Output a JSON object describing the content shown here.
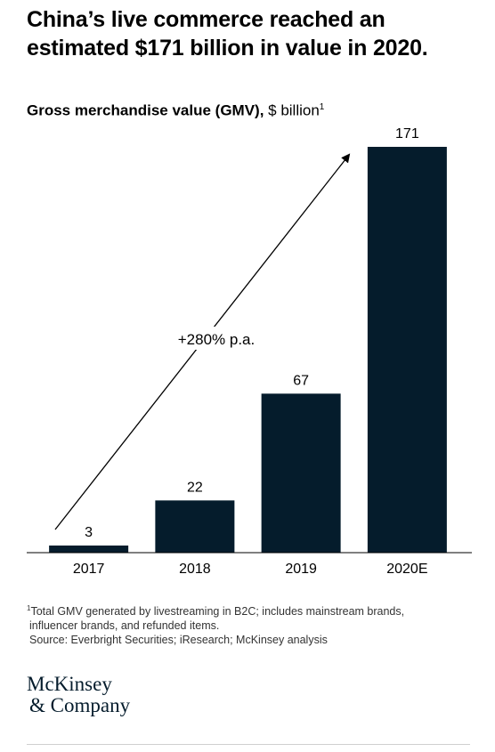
{
  "header": {
    "title": "China’s live commerce reached an estimated $171 billion in value in 2020.",
    "subtitle_bold": "Gross merchandise value (GMV),",
    "subtitle_unit": " $ billion",
    "subtitle_sup": "1"
  },
  "chart_data": {
    "type": "bar",
    "categories": [
      "2017",
      "2018",
      "2019",
      "2020E"
    ],
    "values": [
      3,
      22,
      67,
      171
    ],
    "annotation": "+280% p.a.",
    "bar_color": "#051c2c",
    "ylim": [
      0,
      171
    ],
    "grid": false,
    "legend": "none"
  },
  "footnote": {
    "sup": "1",
    "line1": "Total GMV generated by livestreaming in B2C; includes mainstream brands,",
    "line2": "influencer brands, and refunded items.",
    "source": "Source: Everbright Securities; iResearch; McKinsey analysis"
  },
  "logo": {
    "line1": "McKinsey",
    "line2": "& Company"
  }
}
